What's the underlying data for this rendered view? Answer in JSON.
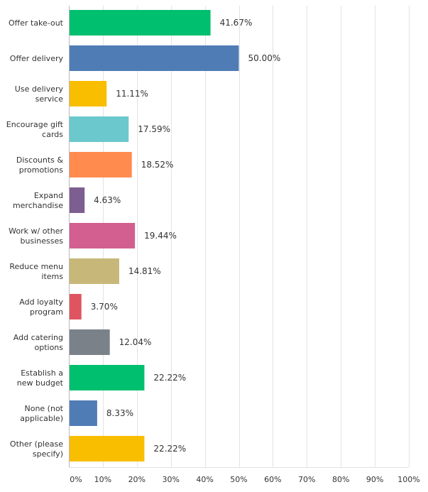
{
  "chart_data": {
    "type": "bar",
    "orientation": "horizontal",
    "title": "",
    "xlabel": "",
    "ylabel": "",
    "xlim": [
      0,
      100
    ],
    "grid": true,
    "categories": [
      [
        "Offer take-out"
      ],
      [
        "Offer delivery"
      ],
      [
        "Use delivery",
        "service"
      ],
      [
        "Encourage gift",
        "cards"
      ],
      [
        "Discounts &",
        "promotions"
      ],
      [
        "Expand",
        "merchandise"
      ],
      [
        "Work w/ other",
        "businesses"
      ],
      [
        "Reduce menu",
        "items"
      ],
      [
        "Add loyalty",
        "program"
      ],
      [
        "Add catering",
        "options"
      ],
      [
        "Establish a",
        "new budget"
      ],
      [
        "None (not",
        "applicable)"
      ],
      [
        "Other (please",
        "specify)"
      ]
    ],
    "values": [
      41.67,
      50.0,
      11.11,
      17.59,
      18.52,
      4.63,
      19.44,
      14.81,
      3.7,
      12.04,
      22.22,
      8.33,
      22.22
    ],
    "value_labels": [
      "41.67%",
      "50.00%",
      "11.11%",
      "17.59%",
      "18.52%",
      "4.63%",
      "19.44%",
      "14.81%",
      "3.70%",
      "12.04%",
      "22.22%",
      "8.33%",
      "22.22%"
    ],
    "colors": [
      "#00BF6F",
      "#507CB6",
      "#F9BE00",
      "#6BC8CD",
      "#FF8B4F",
      "#7D5E90",
      "#D25F90",
      "#C7B879",
      "#DF5461",
      "#7A8189",
      "#00BF6F",
      "#507CB6",
      "#F9BE00"
    ],
    "x_ticks": [
      0,
      10,
      20,
      30,
      40,
      50,
      60,
      70,
      80,
      90,
      100
    ],
    "x_tick_labels": [
      "0%",
      "10%",
      "20%",
      "30%",
      "40%",
      "50%",
      "60%",
      "70%",
      "80%",
      "90%",
      "100%"
    ]
  }
}
